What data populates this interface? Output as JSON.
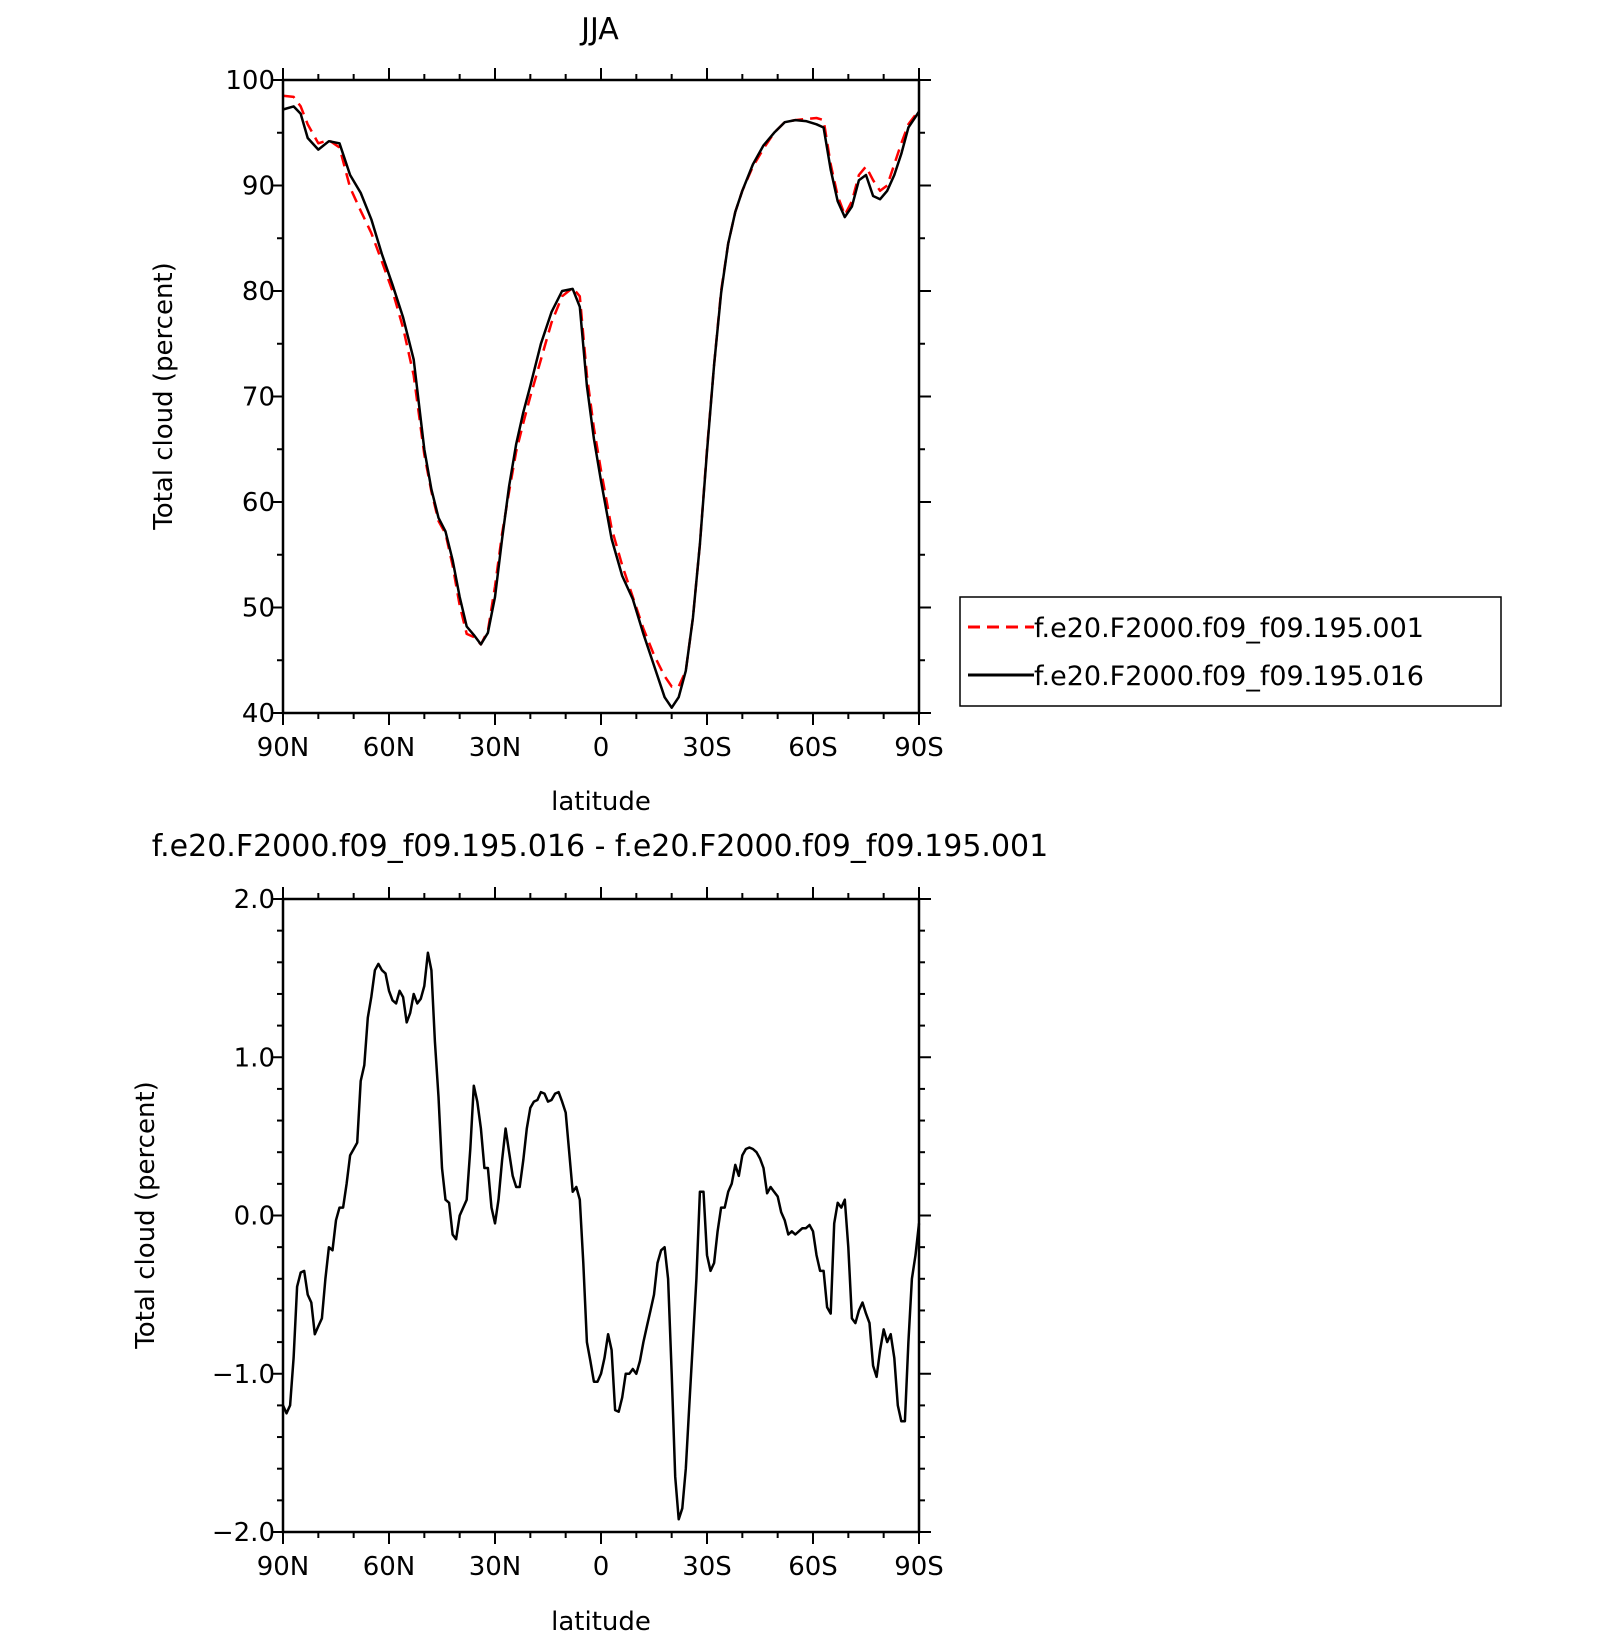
{
  "chart_data": [
    {
      "type": "line",
      "title": "JJA",
      "xlabel": "latitude",
      "ylabel": "Total cloud (percent)",
      "xlim": [
        90,
        -90
      ],
      "ylim": [
        40,
        100
      ],
      "x_ticks": [
        90,
        60,
        30,
        0,
        -30,
        -60,
        -90
      ],
      "x_tick_labels": [
        "90N",
        "60N",
        "30N",
        "0",
        "30S",
        "60S",
        "90S"
      ],
      "y_ticks": [
        40,
        50,
        60,
        70,
        80,
        90,
        100
      ],
      "y_tick_labels": [
        "40",
        "50",
        "60",
        "70",
        "80",
        "90",
        "100"
      ],
      "grid": false,
      "legend_position": "right",
      "series": [
        {
          "name": "f.e20.F2000.f09_f09.195.001",
          "color": "#ff0000",
          "dash": "dashed",
          "x": [
            90,
            87,
            85,
            83,
            80,
            77,
            74,
            71,
            68,
            65,
            62,
            59,
            56,
            53,
            50,
            48,
            46,
            44,
            42,
            40,
            38,
            36,
            34,
            32,
            30,
            28,
            26,
            24,
            22,
            20,
            17,
            14,
            11,
            8,
            6,
            4,
            2,
            0,
            -3,
            -6,
            -9,
            -12,
            -15,
            -18,
            -20,
            -22,
            -24,
            -26,
            -28,
            -30,
            -32,
            -34,
            -36,
            -38,
            -40,
            -43,
            -46,
            -49,
            -52,
            -55,
            -58,
            -61,
            -63,
            -65,
            -67,
            -69,
            -71,
            -73,
            -75,
            -77,
            -79,
            -81,
            -83,
            -85,
            -87,
            -89,
            -90
          ],
          "values": [
            98.5,
            98.4,
            97.5,
            95.8,
            94,
            94.3,
            93.6,
            89.8,
            87.6,
            85.5,
            82.8,
            80,
            76.5,
            72,
            64.5,
            61,
            58.2,
            57,
            54,
            50.2,
            47.5,
            47.2,
            46.5,
            47.8,
            52,
            57,
            61,
            64.8,
            67.5,
            70,
            73.5,
            77,
            79.5,
            80.3,
            79.5,
            72,
            67,
            63,
            57.5,
            54,
            51,
            48,
            45.5,
            43.5,
            42.5,
            42.5,
            44,
            49,
            56,
            65,
            73,
            80,
            84.5,
            87.5,
            89.5,
            91.8,
            93.5,
            95,
            96,
            96.2,
            96.3,
            96.4,
            96.2,
            92,
            89,
            87.2,
            88.5,
            91,
            91.8,
            90.5,
            89.5,
            90,
            92,
            94,
            95.8,
            96.7,
            97.2
          ]
        },
        {
          "name": "f.e20.F2000.f09_f09.195.016",
          "color": "#000000",
          "dash": "solid",
          "x": [
            90,
            87,
            85,
            83,
            80,
            77,
            74,
            71,
            68,
            65,
            62,
            59,
            56,
            53,
            50,
            48,
            46,
            44,
            42,
            40,
            38,
            36,
            34,
            32,
            30,
            28,
            26,
            24,
            22,
            20,
            17,
            14,
            11,
            8,
            6,
            4,
            2,
            0,
            -3,
            -6,
            -9,
            -12,
            -15,
            -18,
            -20,
            -22,
            -24,
            -26,
            -28,
            -30,
            -32,
            -34,
            -36,
            -38,
            -40,
            -43,
            -46,
            -49,
            -52,
            -55,
            -58,
            -61,
            -63,
            -65,
            -67,
            -69,
            -71,
            -73,
            -75,
            -77,
            -79,
            -81,
            -83,
            -85,
            -87,
            -89,
            -90
          ],
          "values": [
            97.2,
            97.5,
            96.8,
            94.5,
            93.4,
            94.2,
            94,
            91,
            89.3,
            86.8,
            83.5,
            80.6,
            77.5,
            73.5,
            65,
            61.2,
            58.5,
            57.2,
            54.5,
            51,
            48.2,
            47.4,
            46.5,
            47.6,
            51,
            56.5,
            61.5,
            65.5,
            68.5,
            71,
            75,
            78,
            80,
            80.2,
            78.5,
            71,
            66,
            62,
            56.5,
            53,
            50.8,
            47.5,
            44.5,
            41.5,
            40.5,
            41.5,
            44,
            49,
            56,
            64.8,
            73,
            79.8,
            84.5,
            87.5,
            89.5,
            92,
            93.8,
            95,
            96,
            96.2,
            96.1,
            95.8,
            95.5,
            91.5,
            88.5,
            87,
            88,
            90.5,
            91,
            89,
            88.7,
            89.5,
            91,
            93,
            95.5,
            96.5,
            97
          ]
        }
      ]
    },
    {
      "type": "line",
      "title": "f.e20.F2000.f09_f09.195.016 - f.e20.F2000.f09_f09.195.001",
      "xlabel": "latitude",
      "ylabel": "Total cloud (percent)",
      "xlim": [
        90,
        -90
      ],
      "ylim": [
        -2,
        2
      ],
      "x_ticks": [
        90,
        60,
        30,
        0,
        -30,
        -60,
        -90
      ],
      "x_tick_labels": [
        "90N",
        "60N",
        "30N",
        "0",
        "30S",
        "60S",
        "90S"
      ],
      "y_ticks": [
        -2,
        -1,
        0,
        1,
        2
      ],
      "y_tick_labels": [
        "−2.0",
        "−1.0",
        "0.0",
        "1.0",
        "2.0"
      ],
      "grid": false,
      "series": [
        {
          "color": "#000000",
          "dash": "solid",
          "x": [
            90,
            89,
            88,
            87,
            86,
            85,
            84,
            83,
            82,
            81,
            80,
            79,
            78,
            77,
            76,
            75,
            74,
            73,
            72,
            71,
            70,
            69,
            68,
            67,
            66,
            65,
            64,
            63,
            62,
            61,
            60,
            59,
            58,
            57,
            56,
            55,
            54,
            53,
            52,
            51,
            50,
            49,
            48,
            47,
            46,
            45,
            44,
            43,
            42,
            41,
            40,
            39,
            38,
            37,
            36,
            35,
            34,
            33,
            32,
            31,
            30,
            29,
            28,
            27,
            26,
            25,
            24,
            23,
            22,
            21,
            20,
            19,
            18,
            17,
            16,
            15,
            14,
            13,
            12,
            11,
            10,
            9,
            8,
            7,
            6,
            5,
            4,
            3,
            2,
            1,
            0,
            -1,
            -2,
            -3,
            -4,
            -5,
            -6,
            -7,
            -8,
            -9,
            -10,
            -11,
            -12,
            -13,
            -14,
            -15,
            -16,
            -17,
            -18,
            -19,
            -20,
            -21,
            -22,
            -23,
            -24,
            -25,
            -26,
            -27,
            -28,
            -29,
            -30,
            -31,
            -32,
            -33,
            -34,
            -35,
            -36,
            -37,
            -38,
            -39,
            -40,
            -41,
            -42,
            -43,
            -44,
            -45,
            -46,
            -47,
            -48,
            -49,
            -50,
            -51,
            -52,
            -53,
            -54,
            -55,
            -56,
            -57,
            -58,
            -59,
            -60,
            -61,
            -62,
            -63,
            -64,
            -65,
            -66,
            -67,
            -68,
            -69,
            -70,
            -71,
            -72,
            -73,
            -74,
            -75,
            -76,
            -77,
            -78,
            -79,
            -80,
            -81,
            -82,
            -83,
            -84,
            -85,
            -86,
            -87,
            -88,
            -89,
            -90
          ],
          "values": [
            -1.2,
            -1.25,
            -1.2,
            -0.9,
            -0.45,
            -0.36,
            -0.35,
            -0.5,
            -0.55,
            -0.75,
            -0.7,
            -0.65,
            -0.4,
            -0.2,
            -0.22,
            -0.03,
            0.05,
            0.05,
            0.2,
            0.38,
            0.42,
            0.46,
            0.85,
            0.95,
            1.25,
            1.38,
            1.55,
            1.59,
            1.55,
            1.53,
            1.42,
            1.36,
            1.34,
            1.42,
            1.38,
            1.22,
            1.28,
            1.4,
            1.34,
            1.37,
            1.45,
            1.66,
            1.55,
            1.1,
            0.75,
            0.3,
            0.1,
            0.08,
            -0.12,
            -0.15,
            0.0,
            0.05,
            0.1,
            0.42,
            0.82,
            0.72,
            0.55,
            0.3,
            0.3,
            0.05,
            -0.05,
            0.1,
            0.35,
            0.55,
            0.4,
            0.25,
            0.18,
            0.18,
            0.35,
            0.55,
            0.68,
            0.72,
            0.73,
            0.78,
            0.77,
            0.72,
            0.73,
            0.77,
            0.78,
            0.72,
            0.65,
            0.4,
            0.15,
            0.18,
            0.1,
            -0.3,
            -0.8,
            -0.92,
            -1.05,
            -1.05,
            -1.0,
            -0.9,
            -0.75,
            -0.85,
            -1.23,
            -1.24,
            -1.15,
            -1.0,
            -1.0,
            -0.97,
            -1.0,
            -0.92,
            -0.8,
            -0.7,
            -0.6,
            -0.5,
            -0.3,
            -0.22,
            -0.2,
            -0.4,
            -1.0,
            -1.65,
            -1.92,
            -1.85,
            -1.6,
            -1.2,
            -0.8,
            -0.4,
            0.15,
            0.15,
            -0.25,
            -0.35,
            -0.3,
            -0.1,
            0.05,
            0.05,
            0.15,
            0.2,
            0.32,
            0.25,
            0.38,
            0.42,
            0.43,
            0.42,
            0.4,
            0.36,
            0.3,
            0.14,
            0.18,
            0.15,
            0.12,
            0.02,
            -0.03,
            -0.12,
            -0.1,
            -0.12,
            -0.1,
            -0.08,
            -0.08,
            -0.06,
            -0.1,
            -0.25,
            -0.35,
            -0.35,
            -0.58,
            -0.62,
            -0.05,
            0.08,
            0.05,
            0.1,
            -0.2,
            -0.65,
            -0.68,
            -0.6,
            -0.55,
            -0.62,
            -0.68,
            -0.95,
            -1.02,
            -0.85,
            -0.72,
            -0.8,
            -0.75,
            -0.9,
            -1.2,
            -1.3,
            -1.3,
            -0.8,
            -0.4,
            -0.25,
            -0.05
          ]
        }
      ]
    }
  ]
}
